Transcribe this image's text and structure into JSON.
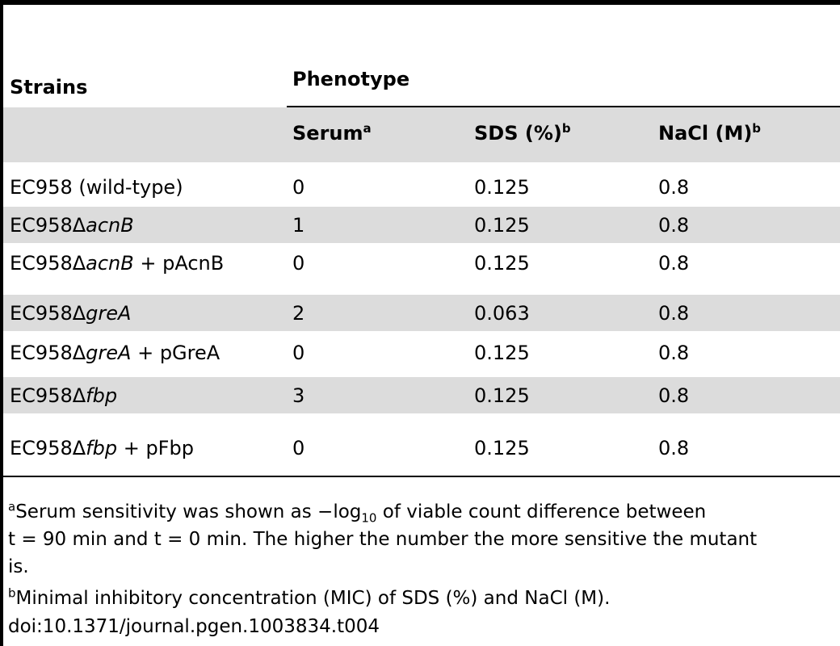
{
  "table": {
    "header": {
      "strains": "Strains",
      "phenotype": "Phenotype",
      "serum": "Serum",
      "serum_sup": "a",
      "sds": "SDS (%)",
      "sds_sup": "b",
      "nacl": "NaCl (M)",
      "nacl_sup": "b"
    },
    "rows": [
      {
        "strain_prefix": "EC958 (wild-type)",
        "strain_gene": "",
        "strain_suffix": "",
        "serum": "0",
        "sds": "0.125",
        "nacl": "0.8"
      },
      {
        "strain_prefix": "EC958Δ",
        "strain_gene": "acnB",
        "strain_suffix": "",
        "serum": "1",
        "sds": "0.125",
        "nacl": "0.8"
      },
      {
        "strain_prefix": "EC958Δ",
        "strain_gene": "acnB",
        "strain_suffix": " + pAcnB",
        "serum": "0",
        "sds": "0.125",
        "nacl": "0.8"
      },
      {
        "strain_prefix": "EC958Δ",
        "strain_gene": "greA",
        "strain_suffix": "",
        "serum": "2",
        "sds": "0.063",
        "nacl": "0.8"
      },
      {
        "strain_prefix": "EC958Δ",
        "strain_gene": "greA",
        "strain_suffix": " + pGreA",
        "serum": "0",
        "sds": "0.125",
        "nacl": "0.8"
      },
      {
        "strain_prefix": "EC958Δ",
        "strain_gene": "fbp",
        "strain_suffix": "",
        "serum": "3",
        "sds": "0.125",
        "nacl": "0.8"
      },
      {
        "strain_prefix": "EC958Δ",
        "strain_gene": "fbp",
        "strain_suffix": " + pFbp",
        "serum": "0",
        "sds": "0.125",
        "nacl": "0.8"
      }
    ]
  },
  "footnotes": {
    "a_marker": "a",
    "a_line1_pre": "Serum sensitivity was shown as −log",
    "a_line1_sub": "10",
    "a_line1_post": " of viable count difference between",
    "a_line2": "t = 90 min and t = 0 min. The higher the number the more sensitive the mutant",
    "a_line3": "is.",
    "b_marker": "b",
    "b_text": "Minimal inhibitory concentration (MIC) of SDS (%) and NaCl (M).",
    "doi": "doi:10.1371/journal.pgen.1003834.t004"
  },
  "colors": {
    "row_shade": "#dcdcdc",
    "rule": "#000000"
  }
}
